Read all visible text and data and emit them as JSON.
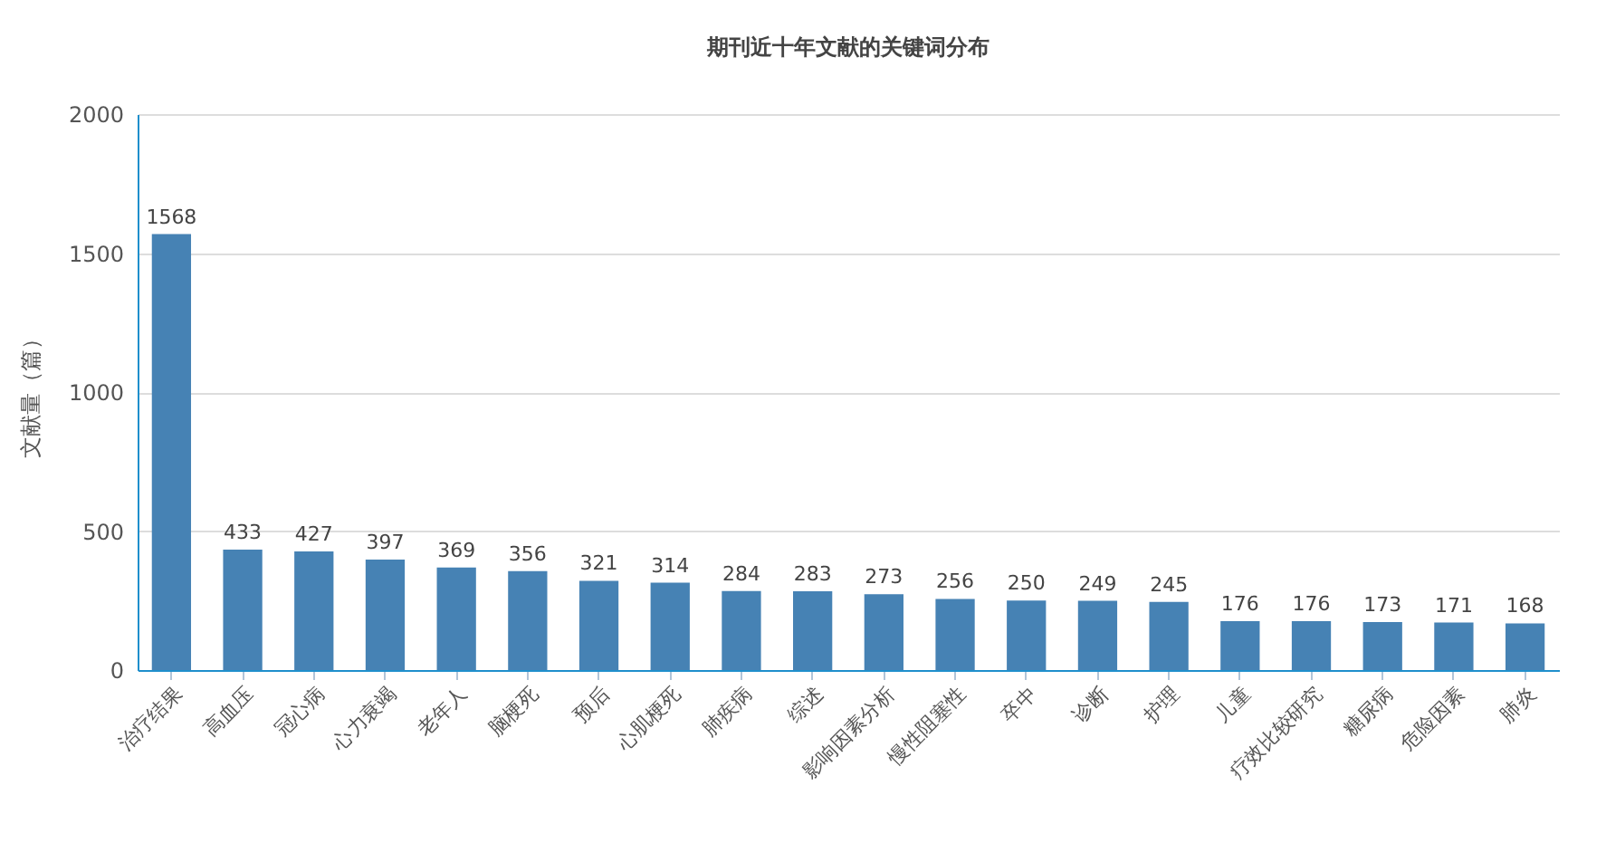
{
  "chart_data": {
    "type": "bar",
    "title": "期刊近十年文献的关键词分布",
    "ylabel": "文献量（篇）",
    "categories": [
      "治疗结果",
      "高血压",
      "冠心病",
      "心力衰竭",
      "老年人",
      "脑梗死",
      "预后",
      "心肌梗死",
      "肺疾病",
      "综述",
      "影响因素分析",
      "慢性阻塞性",
      "卒中",
      "诊断",
      "护理",
      "儿童",
      "疗效比较研究",
      "糖尿病",
      "危险因素",
      "肺炎"
    ],
    "values": [
      1568,
      433,
      427,
      397,
      369,
      356,
      321,
      314,
      284,
      283,
      273,
      256,
      250,
      249,
      245,
      176,
      176,
      173,
      171,
      168
    ],
    "color": "#4682b4",
    "ylim": [
      0,
      2000
    ],
    "yticks": [
      0,
      500,
      1000,
      1500,
      2000
    ],
    "grid": "y",
    "data_labels": true
  }
}
